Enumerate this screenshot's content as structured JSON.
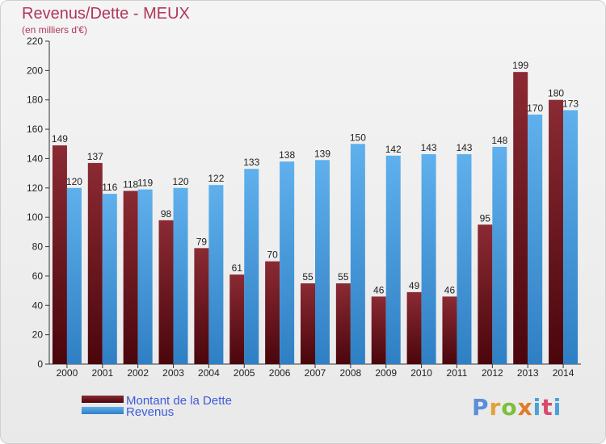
{
  "header": {
    "title": "Revenus/Dette - MEUX",
    "subtitle": "(en milliers d'€)"
  },
  "logo": {
    "text": "Proxiti"
  },
  "colors": {
    "dette": "#6e1219",
    "revenus": "#4a9fe0",
    "title": "#b0375a",
    "legend_text": "#3d5bd9"
  },
  "chart_data": {
    "type": "bar",
    "title": "Revenus/Dette - MEUX",
    "subtitle": "(en milliers d'€)",
    "categories": [
      "2000",
      "2001",
      "2002",
      "2003",
      "2004",
      "2005",
      "2006",
      "2007",
      "2008",
      "2009",
      "2010",
      "2011",
      "2012",
      "2013",
      "2014"
    ],
    "series": [
      {
        "name": "Montant de la Dette",
        "values": [
          149,
          137,
          118,
          98,
          79,
          61,
          70,
          55,
          55,
          46,
          49,
          46,
          95,
          199,
          180
        ]
      },
      {
        "name": "Revenus",
        "values": [
          120,
          116,
          119,
          120,
          122,
          133,
          138,
          139,
          150,
          142,
          143,
          143,
          148,
          170,
          173
        ]
      }
    ],
    "ylim": [
      0,
      220
    ],
    "yticks": [
      0,
      20,
      40,
      60,
      80,
      100,
      120,
      140,
      160,
      180,
      200,
      220
    ],
    "grid": false,
    "legend": "bottom-left"
  }
}
